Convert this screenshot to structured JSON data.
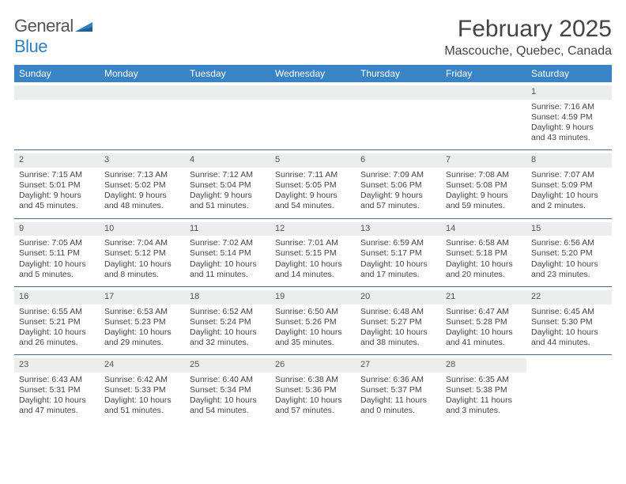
{
  "logo": {
    "word1": "General",
    "word2": "Blue"
  },
  "title": "February 2025",
  "location": "Mascouche, Quebec, Canada",
  "colors": {
    "header_bg": "#3a83c4",
    "header_text": "#ffffff",
    "day_shade": "#eceded",
    "rule": "#4a6a8a",
    "text": "#444444",
    "logo_blue": "#2f7fc1"
  },
  "day_names": [
    "Sunday",
    "Monday",
    "Tuesday",
    "Wednesday",
    "Thursday",
    "Friday",
    "Saturday"
  ],
  "weeks": [
    [
      null,
      null,
      null,
      null,
      null,
      null,
      {
        "n": 1,
        "rise": "7:16 AM",
        "set": "4:59 PM",
        "daylight": "9 hours and 43 minutes."
      }
    ],
    [
      {
        "n": 2,
        "rise": "7:15 AM",
        "set": "5:01 PM",
        "daylight": "9 hours and 45 minutes."
      },
      {
        "n": 3,
        "rise": "7:13 AM",
        "set": "5:02 PM",
        "daylight": "9 hours and 48 minutes."
      },
      {
        "n": 4,
        "rise": "7:12 AM",
        "set": "5:04 PM",
        "daylight": "9 hours and 51 minutes."
      },
      {
        "n": 5,
        "rise": "7:11 AM",
        "set": "5:05 PM",
        "daylight": "9 hours and 54 minutes."
      },
      {
        "n": 6,
        "rise": "7:09 AM",
        "set": "5:06 PM",
        "daylight": "9 hours and 57 minutes."
      },
      {
        "n": 7,
        "rise": "7:08 AM",
        "set": "5:08 PM",
        "daylight": "9 hours and 59 minutes."
      },
      {
        "n": 8,
        "rise": "7:07 AM",
        "set": "5:09 PM",
        "daylight": "10 hours and 2 minutes."
      }
    ],
    [
      {
        "n": 9,
        "rise": "7:05 AM",
        "set": "5:11 PM",
        "daylight": "10 hours and 5 minutes."
      },
      {
        "n": 10,
        "rise": "7:04 AM",
        "set": "5:12 PM",
        "daylight": "10 hours and 8 minutes."
      },
      {
        "n": 11,
        "rise": "7:02 AM",
        "set": "5:14 PM",
        "daylight": "10 hours and 11 minutes."
      },
      {
        "n": 12,
        "rise": "7:01 AM",
        "set": "5:15 PM",
        "daylight": "10 hours and 14 minutes."
      },
      {
        "n": 13,
        "rise": "6:59 AM",
        "set": "5:17 PM",
        "daylight": "10 hours and 17 minutes."
      },
      {
        "n": 14,
        "rise": "6:58 AM",
        "set": "5:18 PM",
        "daylight": "10 hours and 20 minutes."
      },
      {
        "n": 15,
        "rise": "6:56 AM",
        "set": "5:20 PM",
        "daylight": "10 hours and 23 minutes."
      }
    ],
    [
      {
        "n": 16,
        "rise": "6:55 AM",
        "set": "5:21 PM",
        "daylight": "10 hours and 26 minutes."
      },
      {
        "n": 17,
        "rise": "6:53 AM",
        "set": "5:23 PM",
        "daylight": "10 hours and 29 minutes."
      },
      {
        "n": 18,
        "rise": "6:52 AM",
        "set": "5:24 PM",
        "daylight": "10 hours and 32 minutes."
      },
      {
        "n": 19,
        "rise": "6:50 AM",
        "set": "5:26 PM",
        "daylight": "10 hours and 35 minutes."
      },
      {
        "n": 20,
        "rise": "6:48 AM",
        "set": "5:27 PM",
        "daylight": "10 hours and 38 minutes."
      },
      {
        "n": 21,
        "rise": "6:47 AM",
        "set": "5:28 PM",
        "daylight": "10 hours and 41 minutes."
      },
      {
        "n": 22,
        "rise": "6:45 AM",
        "set": "5:30 PM",
        "daylight": "10 hours and 44 minutes."
      }
    ],
    [
      {
        "n": 23,
        "rise": "6:43 AM",
        "set": "5:31 PM",
        "daylight": "10 hours and 47 minutes."
      },
      {
        "n": 24,
        "rise": "6:42 AM",
        "set": "5:33 PM",
        "daylight": "10 hours and 51 minutes."
      },
      {
        "n": 25,
        "rise": "6:40 AM",
        "set": "5:34 PM",
        "daylight": "10 hours and 54 minutes."
      },
      {
        "n": 26,
        "rise": "6:38 AM",
        "set": "5:36 PM",
        "daylight": "10 hours and 57 minutes."
      },
      {
        "n": 27,
        "rise": "6:36 AM",
        "set": "5:37 PM",
        "daylight": "11 hours and 0 minutes."
      },
      {
        "n": 28,
        "rise": "6:35 AM",
        "set": "5:38 PM",
        "daylight": "11 hours and 3 minutes."
      },
      null
    ]
  ],
  "labels": {
    "sunrise": "Sunrise:",
    "sunset": "Sunset:",
    "daylight": "Daylight:"
  }
}
